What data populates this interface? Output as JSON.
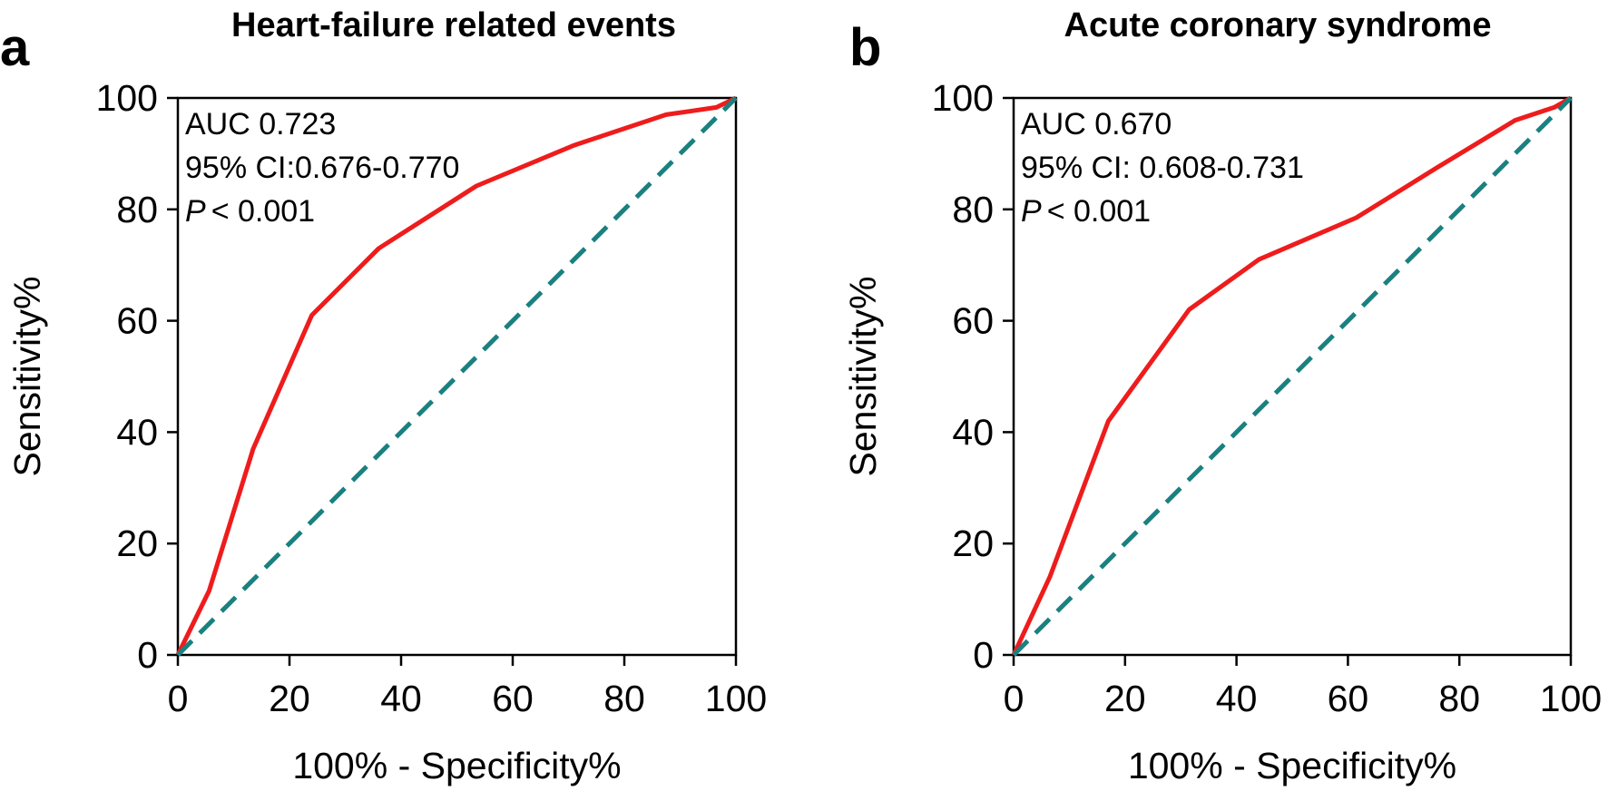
{
  "chart_data": [
    {
      "type": "line",
      "panel_label": "a",
      "title": "Heart-failure related events",
      "xlabel": "100% - Specificity%",
      "ylabel": "Sensitivity%",
      "xlim": [
        0,
        100
      ],
      "ylim": [
        0,
        100
      ],
      "xticks": [
        "0",
        "20",
        "40",
        "60",
        "80",
        "100"
      ],
      "yticks": [
        "0",
        "20",
        "40",
        "60",
        "80",
        "100"
      ],
      "grid": false,
      "annotations": [
        "AUC 0.723",
        "95% CI:0.676-0.770",
        "< 0.001"
      ],
      "p_symbol": "P",
      "series": [
        {
          "color": "#ee1c1c",
          "x": [
            0,
            5.6,
            13.5,
            24,
            36,
            53.5,
            71,
            87.5,
            96.5,
            100
          ],
          "y": [
            0,
            11.5,
            37,
            61,
            73,
            84.2,
            91.5,
            97,
            98.3,
            100
          ]
        },
        {
          "color": "#1a8080",
          "dashed": true,
          "x": [
            0,
            100
          ],
          "y": [
            0,
            100
          ]
        }
      ]
    },
    {
      "type": "line",
      "panel_label": "b",
      "title": "Acute coronary syndrome",
      "xlabel": "100% - Specificity%",
      "ylabel": "Sensitivity%",
      "xlim": [
        0,
        100
      ],
      "ylim": [
        0,
        100
      ],
      "xticks": [
        "0",
        "20",
        "40",
        "60",
        "80",
        "100"
      ],
      "yticks": [
        "0",
        "20",
        "40",
        "60",
        "80",
        "100"
      ],
      "grid": false,
      "annotations": [
        "AUC 0.670",
        "95% CI: 0.608-0.731",
        "< 0.001"
      ],
      "p_symbol": "P",
      "series": [
        {
          "color": "#ee1c1c",
          "x": [
            0,
            6.5,
            17,
            31.5,
            44,
            61.5,
            76,
            90,
            97,
            100
          ],
          "y": [
            0,
            14,
            42,
            62,
            71,
            78.5,
            87.5,
            96,
            98.3,
            100
          ]
        },
        {
          "color": "#1a8080",
          "dashed": true,
          "x": [
            0,
            100
          ],
          "y": [
            0,
            100
          ]
        }
      ]
    }
  ]
}
